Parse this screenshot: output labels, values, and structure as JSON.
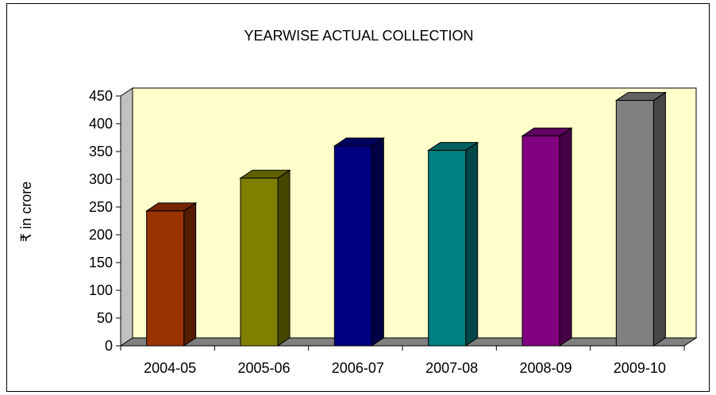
{
  "chart_data": {
    "type": "bar",
    "title": "YEARWISE ACTUAL COLLECTION",
    "ylabel": "₹ in crore",
    "xlabel": "",
    "categories": [
      "2004-05",
      "2005-06",
      "2006-07",
      "2007-08",
      "2008-09",
      "2009-10"
    ],
    "values": [
      243,
      302,
      360,
      352,
      378,
      442
    ],
    "ylim": [
      0,
      450
    ],
    "yticks": [
      0,
      50,
      100,
      150,
      200,
      250,
      300,
      350,
      400,
      450
    ],
    "grid": false,
    "legend": "none",
    "style": "3d-column",
    "colors": [
      "#993300",
      "#808000",
      "#000080",
      "#008080",
      "#800080",
      "#808080"
    ],
    "back_wall_color": "#ffffcc",
    "floor_color": "#808080"
  }
}
